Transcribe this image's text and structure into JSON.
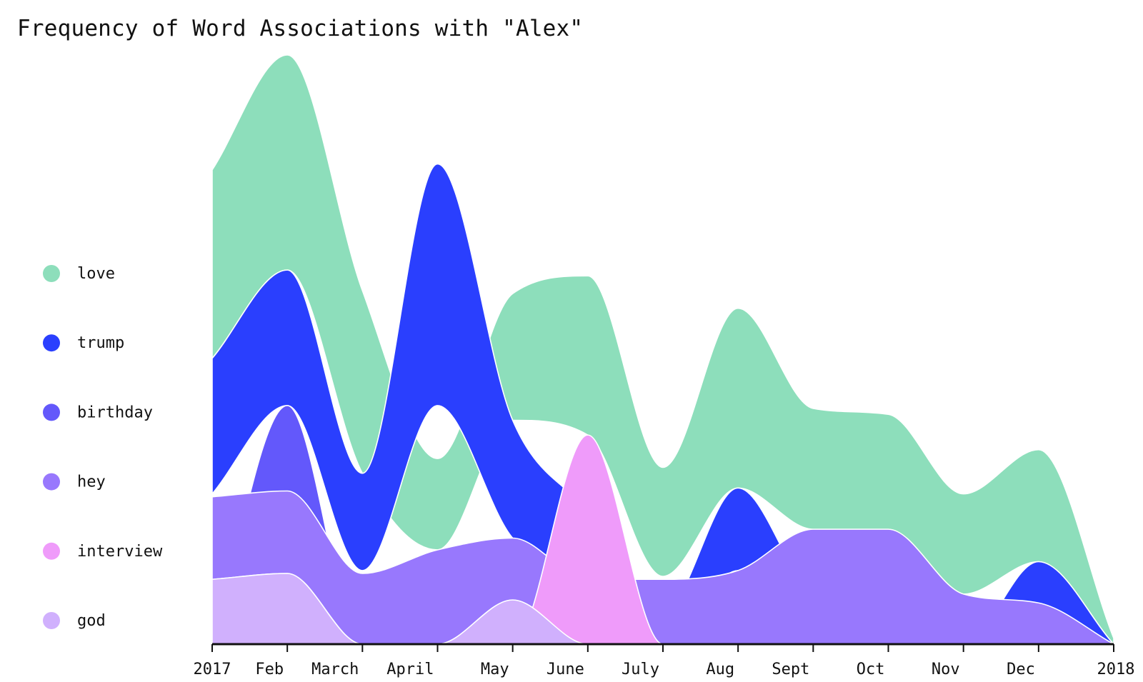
{
  "title": "Frequency of Word Associations with \"Alex\"",
  "chart_data": {
    "type": "area",
    "style": "overlapping smoothed area layers (streamgraph-like)",
    "title": "Frequency of Word Associations with \"Alex\"",
    "xlabel": "",
    "ylabel": "",
    "y_axis_shown": false,
    "grid": false,
    "legend_position": "left",
    "categories": [
      "2017",
      "Feb",
      "March",
      "April",
      "May",
      "June",
      "July",
      "Aug",
      "Sept",
      "Oct",
      "Nov",
      "Dec",
      "2018"
    ],
    "ylim": [
      0,
      100
    ],
    "series": [
      {
        "name": "love",
        "color": "#8ddebb",
        "upper": [
          80.5,
          100,
          60,
          31.5,
          59.5,
          62.5,
          30,
          57,
          40,
          39,
          25.5,
          33,
          1
        ],
        "lower": [
          48.5,
          63.5,
          29,
          16,
          38,
          35.5,
          11.5,
          26.5,
          19.5,
          19.5,
          8.5,
          14,
          0
        ]
      },
      {
        "name": "trump",
        "color": "#2a3ffe",
        "upper": [
          48.5,
          63.5,
          29,
          81.5,
          38,
          22.5,
          5.5,
          26.5,
          9,
          7,
          0,
          14,
          0
        ],
        "lower": [
          25.5,
          40.5,
          12.5,
          40.5,
          18,
          11,
          0,
          12.5,
          0,
          0,
          0,
          0,
          0
        ]
      },
      {
        "name": "birthday",
        "color": "#6358fb",
        "upper": [
          0,
          40.5,
          0,
          0,
          0,
          0,
          0,
          0,
          0,
          0,
          0,
          0,
          0
        ],
        "lower": [
          0,
          0,
          0,
          0,
          0,
          0,
          0,
          0,
          0,
          0,
          0,
          0,
          0
        ]
      },
      {
        "name": "hey",
        "color": "#9878fd",
        "upper": [
          25,
          26,
          12,
          16,
          18,
          11,
          11,
          12.5,
          19.5,
          19.5,
          8.5,
          7,
          0
        ],
        "lower": [
          11,
          12,
          0,
          0,
          7.5,
          0,
          0,
          0,
          0,
          0,
          0,
          0,
          0
        ]
      },
      {
        "name": "interview",
        "color": "#ef9bfa",
        "upper": [
          0,
          0,
          0,
          0,
          0,
          35.5,
          0,
          0,
          0,
          0,
          0,
          0,
          0
        ],
        "lower": [
          0,
          0,
          0,
          0,
          0,
          0,
          0,
          0,
          0,
          0,
          0,
          0,
          0
        ]
      },
      {
        "name": "god",
        "color": "#d0b0fd",
        "upper": [
          11,
          12,
          0,
          0,
          7.5,
          0,
          0,
          0,
          0,
          0,
          0,
          0,
          0
        ],
        "lower": [
          0,
          0,
          0,
          0,
          0,
          0,
          0,
          0,
          0,
          0,
          0,
          0,
          0
        ]
      }
    ]
  }
}
